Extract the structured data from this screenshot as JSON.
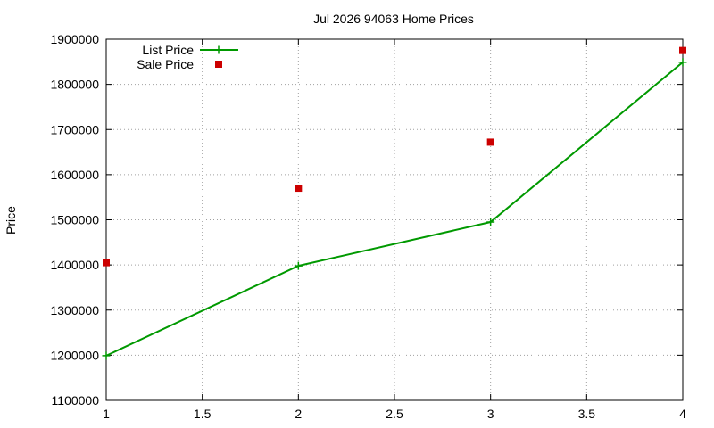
{
  "chart_data": {
    "type": "line",
    "title": "Jul 2026 94063 Home Prices",
    "xlabel": "",
    "ylabel": "Price",
    "xlim": [
      1,
      4
    ],
    "ylim": [
      1100000,
      1900000
    ],
    "xticks": [
      1,
      1.5,
      2,
      2.5,
      3,
      3.5,
      4
    ],
    "xtick_labels": [
      "1",
      "1.5",
      "2",
      "2.5",
      "3",
      "3.5",
      "4"
    ],
    "yticks": [
      1100000,
      1200000,
      1300000,
      1400000,
      1500000,
      1600000,
      1700000,
      1800000,
      1900000
    ],
    "ytick_labels": [
      "1100000",
      "1200000",
      "1300000",
      "1400000",
      "1500000",
      "1600000",
      "1700000",
      "1800000",
      "1900000"
    ],
    "grid": true,
    "legend_position": "top-left",
    "series": [
      {
        "name": "List Price",
        "style": "linespoints",
        "color": "#009900",
        "marker": "plus",
        "x": [
          1,
          2,
          3,
          4
        ],
        "y": [
          1199000,
          1398000,
          1495000,
          1849000
        ]
      },
      {
        "name": "Sale Price",
        "style": "points",
        "color": "#cc0000",
        "marker": "square",
        "x": [
          1,
          2,
          3,
          4
        ],
        "y": [
          1405000,
          1570000,
          1672000,
          1875000
        ]
      }
    ]
  }
}
